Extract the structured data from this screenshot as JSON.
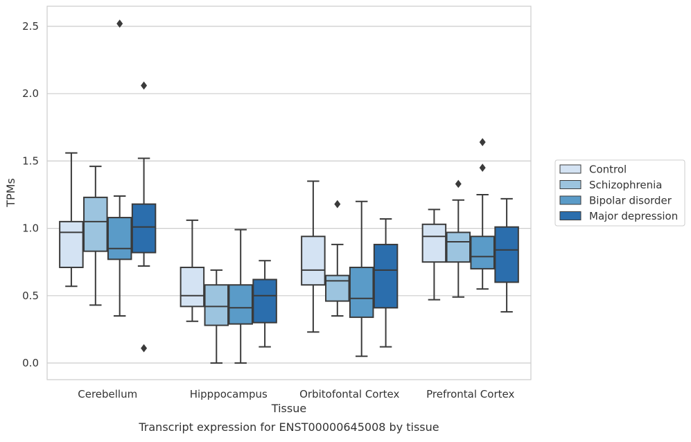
{
  "chart_data": {
    "type": "box",
    "caption": "Transcript expression for ENST00000645008 by tissue",
    "xlabel": "Tissue",
    "ylabel": "TPMs",
    "ylim": [
      -0.12,
      2.65
    ],
    "yticks": [
      0.0,
      0.5,
      1.0,
      1.5,
      2.0,
      2.5
    ],
    "ytick_labels": [
      "0.0",
      "0.5",
      "1.0",
      "1.5",
      "2.0",
      "2.5"
    ],
    "grid": "horizontal",
    "legend_position": "right",
    "categories": [
      "Cerebellum",
      "Hipppocampus",
      "Orbitofontal Cortex",
      "Prefrontal Cortex"
    ],
    "series": [
      {
        "name": "Control",
        "color": "#d4e3f3",
        "boxes": [
          {
            "whisker_low": 0.57,
            "q1": 0.71,
            "median": 0.97,
            "q3": 1.05,
            "whisker_high": 1.56,
            "outliers": []
          },
          {
            "whisker_low": 0.31,
            "q1": 0.42,
            "median": 0.5,
            "q3": 0.71,
            "whisker_high": 1.06,
            "outliers": []
          },
          {
            "whisker_low": 0.23,
            "q1": 0.58,
            "median": 0.69,
            "q3": 0.94,
            "whisker_high": 1.35,
            "outliers": []
          },
          {
            "whisker_low": 0.47,
            "q1": 0.75,
            "median": 0.94,
            "q3": 1.03,
            "whisker_high": 1.14,
            "outliers": []
          }
        ]
      },
      {
        "name": "Schizophrenia",
        "color": "#9cc4df",
        "boxes": [
          {
            "whisker_low": 0.43,
            "q1": 0.83,
            "median": 1.05,
            "q3": 1.23,
            "whisker_high": 1.46,
            "outliers": []
          },
          {
            "whisker_low": 0.0,
            "q1": 0.28,
            "median": 0.42,
            "q3": 0.58,
            "whisker_high": 0.69,
            "outliers": []
          },
          {
            "whisker_low": 0.35,
            "q1": 0.46,
            "median": 0.61,
            "q3": 0.65,
            "whisker_high": 0.88,
            "outliers": [
              1.18
            ]
          },
          {
            "whisker_low": 0.49,
            "q1": 0.75,
            "median": 0.9,
            "q3": 0.97,
            "whisker_high": 1.21,
            "outliers": [
              1.33
            ]
          }
        ]
      },
      {
        "name": "Bipolar disorder",
        "color": "#5a9bc8",
        "boxes": [
          {
            "whisker_low": 0.35,
            "q1": 0.77,
            "median": 0.85,
            "q3": 1.08,
            "whisker_high": 1.24,
            "outliers": [
              2.52
            ]
          },
          {
            "whisker_low": 0.0,
            "q1": 0.29,
            "median": 0.41,
            "q3": 0.58,
            "whisker_high": 0.99,
            "outliers": []
          },
          {
            "whisker_low": 0.05,
            "q1": 0.34,
            "median": 0.48,
            "q3": 0.71,
            "whisker_high": 1.2,
            "outliers": []
          },
          {
            "whisker_low": 0.55,
            "q1": 0.7,
            "median": 0.79,
            "q3": 0.94,
            "whisker_high": 1.25,
            "outliers": [
              1.45,
              1.64
            ]
          }
        ]
      },
      {
        "name": "Major depression",
        "color": "#2b6ead",
        "boxes": [
          {
            "whisker_low": 0.72,
            "q1": 0.82,
            "median": 1.01,
            "q3": 1.18,
            "whisker_high": 1.52,
            "outliers": [
              2.06,
              0.11
            ]
          },
          {
            "whisker_low": 0.12,
            "q1": 0.3,
            "median": 0.5,
            "q3": 0.62,
            "whisker_high": 0.76,
            "outliers": []
          },
          {
            "whisker_low": 0.12,
            "q1": 0.41,
            "median": 0.69,
            "q3": 0.88,
            "whisker_high": 1.07,
            "outliers": []
          },
          {
            "whisker_low": 0.38,
            "q1": 0.6,
            "median": 0.84,
            "q3": 1.01,
            "whisker_high": 1.22,
            "outliers": []
          }
        ]
      }
    ]
  }
}
